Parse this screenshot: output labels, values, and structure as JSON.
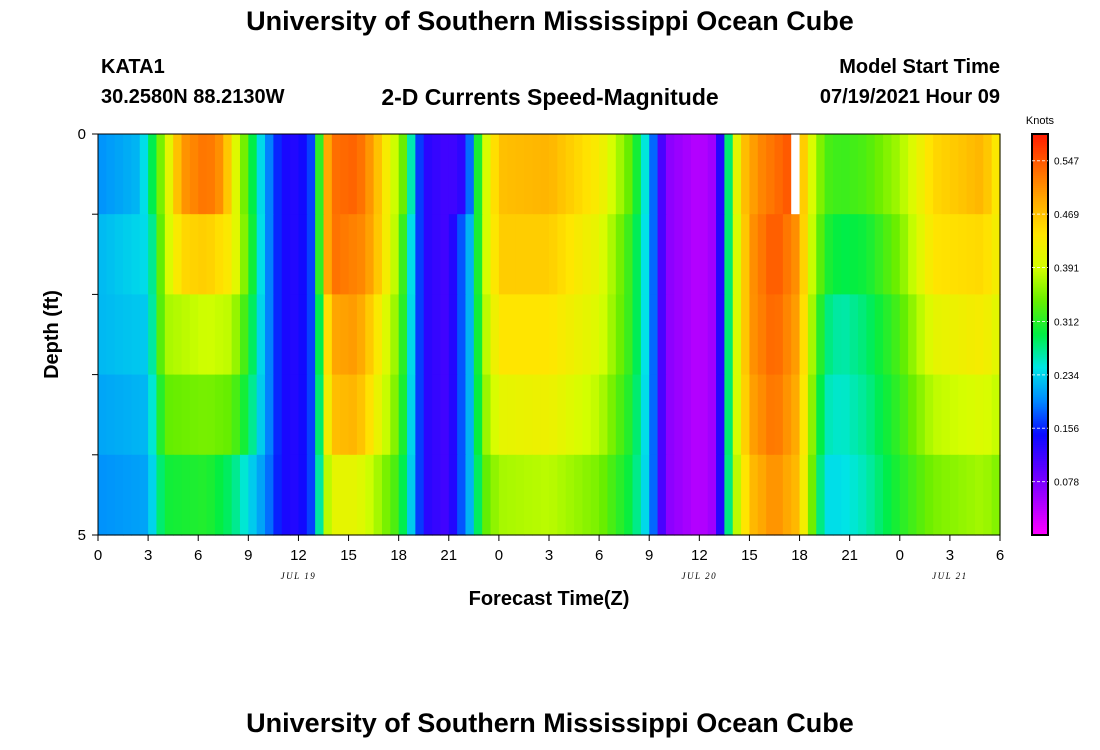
{
  "header": {
    "title": "University of Southern Mississippi Ocean Cube",
    "station_id": "KATA1",
    "coords": "30.2580N  88.2130W",
    "subtitle": "2-D Currents Speed-Magnitude",
    "model_start_label": "Model Start Time",
    "model_start_value": "07/19/2021 Hour 09"
  },
  "footer": {
    "title": "University of Southern Mississippi Ocean Cube"
  },
  "colors": {
    "colormap": [
      "#ff00ff",
      "#aa00ff",
      "#5a00ff",
      "#0a0aff",
      "#0088ff",
      "#00e6e6",
      "#00ee44",
      "#66ee00",
      "#d4ff00",
      "#ffe600",
      "#ffaa00",
      "#ff6600",
      "#ff1a00"
    ]
  },
  "chart_data": {
    "type": "heatmap",
    "xlabel": "Forecast Time(Z)",
    "ylabel": "Depth (ft)",
    "x_range_hours": [
      0,
      54
    ],
    "y_range_ft": [
      0,
      5
    ],
    "y_tick_labels": [
      "0",
      "5"
    ],
    "x_tick_labels": [
      "0",
      "3",
      "6",
      "9",
      "12",
      "15",
      "18",
      "21",
      "0",
      "3",
      "6",
      "9",
      "12",
      "15",
      "18",
      "21",
      "0",
      "3",
      "6"
    ],
    "date_labels": [
      {
        "hour": 12,
        "label": "JUL 19"
      },
      {
        "hour": 36,
        "label": "JUL 20"
      },
      {
        "hour": 51,
        "label": "JUL 21"
      }
    ],
    "colorbar": {
      "label": "Knots",
      "min": 0.0,
      "max": 0.586,
      "tick_labels": [
        "0.547",
        "0.469",
        "0.391",
        "0.312",
        "0.234",
        "0.156",
        "0.078"
      ],
      "tick_values": [
        0.547,
        0.469,
        0.391,
        0.312,
        0.234,
        0.156,
        0.078
      ]
    },
    "depth_layers": 5,
    "time_step_hours": 0.5,
    "surface_keyframes": [
      [
        0,
        0.2
      ],
      [
        2.5,
        0.22
      ],
      [
        3,
        0.26
      ],
      [
        4,
        0.38
      ],
      [
        5,
        0.5
      ],
      [
        6.5,
        0.53
      ],
      [
        7.5,
        0.5
      ],
      [
        8,
        0.43
      ],
      [
        9,
        0.32
      ],
      [
        10,
        0.21
      ],
      [
        11,
        0.14
      ],
      [
        12,
        0.13
      ],
      [
        13,
        0.18
      ],
      [
        13.5,
        0.45
      ],
      [
        14,
        0.53
      ],
      [
        15.5,
        0.54
      ],
      [
        16.5,
        0.49
      ],
      [
        17.5,
        0.41
      ],
      [
        18.5,
        0.32
      ],
      [
        19,
        0.2
      ],
      [
        19.5,
        0.13
      ],
      [
        21,
        0.11
      ],
      [
        22,
        0.13
      ],
      [
        22.5,
        0.24
      ],
      [
        23,
        0.37
      ],
      [
        24,
        0.47
      ],
      [
        27,
        0.48
      ],
      [
        30,
        0.43
      ],
      [
        32,
        0.33
      ],
      [
        33,
        0.22
      ],
      [
        34,
        0.07
      ],
      [
        36,
        0.04
      ],
      [
        37,
        0.06
      ],
      [
        37.5,
        0.2
      ],
      [
        38,
        0.36
      ],
      [
        38.5,
        0.46
      ],
      [
        39.5,
        0.51
      ],
      [
        41.5,
        0.55
      ],
      [
        42,
        0.5
      ],
      [
        42.5,
        0.42
      ],
      [
        43.5,
        0.33
      ],
      [
        44.5,
        0.32
      ],
      [
        46,
        0.33
      ],
      [
        48,
        0.37
      ],
      [
        50,
        0.45
      ],
      [
        53,
        0.48
      ],
      [
        54,
        0.42
      ]
    ],
    "layer_keyframes": [
      [
        [
          0,
          0.22
        ],
        [
          3,
          0.24
        ],
        [
          3.5,
          0.3
        ],
        [
          4,
          0.38
        ],
        [
          5,
          0.45
        ],
        [
          6.5,
          0.46
        ],
        [
          8,
          0.43
        ],
        [
          9,
          0.33
        ],
        [
          10,
          0.21
        ],
        [
          11,
          0.14
        ],
        [
          12,
          0.13
        ],
        [
          13,
          0.18
        ],
        [
          13.5,
          0.45
        ],
        [
          14,
          0.53
        ],
        [
          16,
          0.51
        ],
        [
          17,
          0.45
        ],
        [
          18,
          0.36
        ],
        [
          19,
          0.2
        ],
        [
          19.5,
          0.13
        ],
        [
          21,
          0.11
        ],
        [
          22.5,
          0.24
        ],
        [
          23,
          0.37
        ],
        [
          24,
          0.46
        ],
        [
          27,
          0.46
        ],
        [
          30,
          0.41
        ],
        [
          32,
          0.31
        ],
        [
          33,
          0.22
        ],
        [
          34,
          0.07
        ],
        [
          36,
          0.04
        ],
        [
          37,
          0.06
        ],
        [
          37.5,
          0.2
        ],
        [
          38,
          0.36
        ],
        [
          39,
          0.5
        ],
        [
          40.5,
          0.55
        ],
        [
          42,
          0.5
        ],
        [
          42.5,
          0.41
        ],
        [
          43.5,
          0.31
        ],
        [
          44.5,
          0.29
        ],
        [
          46,
          0.3
        ],
        [
          48,
          0.35
        ],
        [
          50,
          0.44
        ],
        [
          53,
          0.45
        ],
        [
          54,
          0.42
        ]
      ],
      [
        [
          0,
          0.22
        ],
        [
          3,
          0.23
        ],
        [
          3.5,
          0.3
        ],
        [
          4,
          0.37
        ],
        [
          6.5,
          0.39
        ],
        [
          8,
          0.38
        ],
        [
          9,
          0.31
        ],
        [
          10,
          0.21
        ],
        [
          11,
          0.14
        ],
        [
          12,
          0.13
        ],
        [
          13,
          0.18
        ],
        [
          13.5,
          0.4
        ],
        [
          14,
          0.49
        ],
        [
          15.5,
          0.5
        ],
        [
          16.5,
          0.45
        ],
        [
          18,
          0.35
        ],
        [
          19,
          0.2
        ],
        [
          19.5,
          0.13
        ],
        [
          21,
          0.11
        ],
        [
          22.5,
          0.24
        ],
        [
          23,
          0.36
        ],
        [
          24,
          0.44
        ],
        [
          27,
          0.44
        ],
        [
          30,
          0.4
        ],
        [
          32,
          0.31
        ],
        [
          33,
          0.22
        ],
        [
          34,
          0.07
        ],
        [
          36,
          0.04
        ],
        [
          37,
          0.06
        ],
        [
          37.5,
          0.2
        ],
        [
          38,
          0.36
        ],
        [
          39,
          0.5
        ],
        [
          40.5,
          0.54
        ],
        [
          42,
          0.49
        ],
        [
          42.5,
          0.4
        ],
        [
          43.5,
          0.28
        ],
        [
          44.5,
          0.26
        ],
        [
          46,
          0.28
        ],
        [
          48,
          0.33
        ],
        [
          50,
          0.41
        ],
        [
          53,
          0.43
        ],
        [
          54,
          0.4
        ]
      ],
      [
        [
          0,
          0.21
        ],
        [
          3,
          0.22
        ],
        [
          3.5,
          0.28
        ],
        [
          4,
          0.34
        ],
        [
          6.5,
          0.35
        ],
        [
          8,
          0.34
        ],
        [
          9,
          0.29
        ],
        [
          10,
          0.21
        ],
        [
          11,
          0.14
        ],
        [
          12,
          0.13
        ],
        [
          13,
          0.18
        ],
        [
          13.5,
          0.38
        ],
        [
          14,
          0.47
        ],
        [
          15.5,
          0.48
        ],
        [
          16.5,
          0.43
        ],
        [
          18,
          0.34
        ],
        [
          19,
          0.2
        ],
        [
          19.5,
          0.13
        ],
        [
          21,
          0.11
        ],
        [
          22.5,
          0.24
        ],
        [
          23,
          0.35
        ],
        [
          24,
          0.41
        ],
        [
          27,
          0.42
        ],
        [
          30,
          0.38
        ],
        [
          32,
          0.3
        ],
        [
          33,
          0.22
        ],
        [
          34,
          0.07
        ],
        [
          36,
          0.04
        ],
        [
          37,
          0.06
        ],
        [
          37.5,
          0.2
        ],
        [
          38,
          0.36
        ],
        [
          39,
          0.49
        ],
        [
          40.5,
          0.53
        ],
        [
          42,
          0.48
        ],
        [
          42.5,
          0.39
        ],
        [
          43.5,
          0.26
        ],
        [
          44.5,
          0.25
        ],
        [
          46,
          0.27
        ],
        [
          48,
          0.32
        ],
        [
          50,
          0.38
        ],
        [
          53,
          0.4
        ],
        [
          54,
          0.38
        ]
      ],
      [
        [
          0,
          0.2
        ],
        [
          3,
          0.21
        ],
        [
          3.5,
          0.26
        ],
        [
          4,
          0.3
        ],
        [
          6.5,
          0.31
        ],
        [
          8,
          0.28
        ],
        [
          9,
          0.24
        ],
        [
          10,
          0.2
        ],
        [
          11,
          0.14
        ],
        [
          12,
          0.13
        ],
        [
          13,
          0.18
        ],
        [
          13.5,
          0.35
        ],
        [
          14,
          0.41
        ],
        [
          15.5,
          0.41
        ],
        [
          16.5,
          0.38
        ],
        [
          18,
          0.32
        ],
        [
          19,
          0.2
        ],
        [
          19.5,
          0.13
        ],
        [
          21,
          0.11
        ],
        [
          22.5,
          0.24
        ],
        [
          23,
          0.33
        ],
        [
          24,
          0.37
        ],
        [
          27,
          0.38
        ],
        [
          30,
          0.35
        ],
        [
          32,
          0.29
        ],
        [
          33,
          0.22
        ],
        [
          34,
          0.07
        ],
        [
          36,
          0.04
        ],
        [
          37,
          0.06
        ],
        [
          37.5,
          0.2
        ],
        [
          38,
          0.35
        ],
        [
          39,
          0.47
        ],
        [
          40.5,
          0.51
        ],
        [
          42,
          0.47
        ],
        [
          42.5,
          0.38
        ],
        [
          43.5,
          0.24
        ],
        [
          44.5,
          0.24
        ],
        [
          46,
          0.26
        ],
        [
          48,
          0.31
        ],
        [
          50,
          0.35
        ],
        [
          53,
          0.37
        ],
        [
          54,
          0.35
        ]
      ],
      [
        [
          0,
          0.2
        ],
        [
          3,
          0.2
        ],
        [
          3.5,
          0.23
        ],
        [
          4,
          0.26
        ],
        [
          6.5,
          0.27
        ],
        [
          8,
          0.25
        ],
        [
          9,
          0.22
        ],
        [
          10,
          0.2
        ],
        [
          11,
          0.15
        ],
        [
          12,
          0.14
        ],
        [
          13,
          0.18
        ],
        [
          13.5,
          0.3
        ],
        [
          14,
          0.37
        ],
        [
          15.5,
          0.38
        ],
        [
          16.5,
          0.35
        ],
        [
          18,
          0.3
        ],
        [
          19,
          0.2
        ],
        [
          19.5,
          0.13
        ],
        [
          21,
          0.11
        ],
        [
          22.5,
          0.24
        ],
        [
          23,
          0.31
        ],
        [
          24,
          0.34
        ],
        [
          27,
          0.35
        ],
        [
          30,
          0.33
        ],
        [
          32,
          0.28
        ],
        [
          33,
          0.22
        ],
        [
          34,
          0.07
        ],
        [
          36,
          0.04
        ],
        [
          37,
          0.06
        ],
        [
          37.5,
          0.2
        ],
        [
          38,
          0.35
        ],
        [
          39,
          0.46
        ],
        [
          40.5,
          0.5
        ],
        [
          42,
          0.46
        ],
        [
          42.5,
          0.37
        ],
        [
          43.5,
          0.23
        ],
        [
          44.5,
          0.22
        ],
        [
          46,
          0.24
        ],
        [
          48,
          0.29
        ],
        [
          50,
          0.33
        ],
        [
          53,
          0.35
        ],
        [
          54,
          0.33
        ]
      ]
    ],
    "missing_cells": [
      {
        "hour_start": 41.5,
        "hour_end": 42,
        "layer": 0
      }
    ]
  }
}
